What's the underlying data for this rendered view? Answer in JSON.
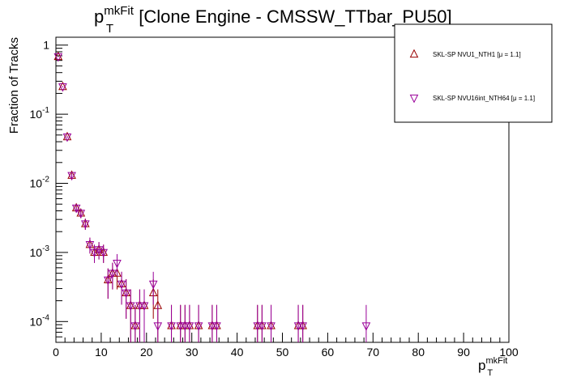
{
  "chart_data": {
    "type": "scatter",
    "title_main": "p",
    "title_sup": "mkFit",
    "title_sub": "T",
    "title_rest": " [Clone Engine - CMSSW_TTbar_PU50]",
    "xlabel_main": "p",
    "xlabel_sup": "mkFit",
    "xlabel_sub": "T",
    "ylabel": "Fraction of Tracks",
    "xlim": [
      0,
      100
    ],
    "ylim": [
      5e-05,
      1.3
    ],
    "y_scale": "log",
    "x_ticks": [
      "0",
      "10",
      "20",
      "30",
      "40",
      "50",
      "60",
      "70",
      "80",
      "90",
      "100"
    ],
    "y_ticks": [
      {
        "base": "10",
        "exp": "-4"
      },
      {
        "base": "10",
        "exp": "-3"
      },
      {
        "base": "10",
        "exp": "-2"
      },
      {
        "base": "10",
        "exp": "-1"
      },
      {
        "base": "1",
        "exp": ""
      }
    ],
    "grid": false,
    "legend_position": "top-right",
    "series": [
      {
        "name": "SKL-SP NVU1_NTH1 [μ =  1.1]",
        "marker": "triangle-up",
        "color": "#990000",
        "points": [
          [
            0.5,
            0.68
          ],
          [
            1.5,
            0.25
          ],
          [
            2.5,
            0.047
          ],
          [
            3.5,
            0.013
          ],
          [
            4.5,
            0.0044
          ],
          [
            5.5,
            0.0037
          ],
          [
            6.5,
            0.0026
          ],
          [
            7.5,
            0.0013
          ],
          [
            8.5,
            0.001
          ],
          [
            9.5,
            0.0011
          ],
          [
            10.5,
            0.001
          ],
          [
            11.5,
            0.0004
          ],
          [
            12.5,
            0.0005
          ],
          [
            13.5,
            0.0005
          ],
          [
            14.5,
            0.00035
          ],
          [
            15.5,
            0.00026
          ],
          [
            16.5,
            0.00017
          ],
          [
            17.5,
            8.7e-05
          ],
          [
            18.5,
            0.00017
          ],
          [
            19.5,
            0.00017
          ],
          [
            21.5,
            0.00026
          ],
          [
            22.5,
            0.00017
          ],
          [
            25.5,
            8.7e-05
          ],
          [
            27.5,
            8.7e-05
          ],
          [
            28.5,
            8.7e-05
          ],
          [
            29.5,
            8.7e-05
          ],
          [
            31.5,
            8.7e-05
          ],
          [
            34.5,
            8.7e-05
          ],
          [
            35.5,
            8.7e-05
          ],
          [
            44.5,
            8.7e-05
          ],
          [
            45.5,
            8.7e-05
          ],
          [
            47.5,
            8.7e-05
          ],
          [
            53.5,
            8.7e-05
          ],
          [
            54.5,
            8.7e-05
          ]
        ]
      },
      {
        "name": "SKL-SP NVU16int_NTH64 [μ =  1.1]",
        "marker": "triangle-down",
        "color": "#990099",
        "points": [
          [
            0.5,
            0.68
          ],
          [
            1.5,
            0.25
          ],
          [
            2.5,
            0.047
          ],
          [
            3.5,
            0.013
          ],
          [
            4.5,
            0.0044
          ],
          [
            5.5,
            0.0037
          ],
          [
            6.5,
            0.0026
          ],
          [
            7.5,
            0.0013
          ],
          [
            8.5,
            0.001
          ],
          [
            9.5,
            0.0011
          ],
          [
            10.5,
            0.001
          ],
          [
            11.5,
            0.0004
          ],
          [
            12.5,
            0.0005
          ],
          [
            13.5,
            0.0007
          ],
          [
            14.5,
            0.00035
          ],
          [
            15.5,
            0.00026
          ],
          [
            16.5,
            0.00017
          ],
          [
            17.5,
            8.7e-05
          ],
          [
            18.5,
            0.00017
          ],
          [
            19.5,
            0.00017
          ],
          [
            21.5,
            0.00035
          ],
          [
            22.5,
            8.7e-05
          ],
          [
            25.5,
            8.7e-05
          ],
          [
            27.5,
            8.7e-05
          ],
          [
            28.5,
            8.7e-05
          ],
          [
            29.5,
            8.7e-05
          ],
          [
            31.5,
            8.7e-05
          ],
          [
            34.5,
            8.7e-05
          ],
          [
            35.5,
            8.7e-05
          ],
          [
            44.5,
            8.7e-05
          ],
          [
            45.5,
            8.7e-05
          ],
          [
            47.5,
            8.7e-05
          ],
          [
            53.5,
            8.7e-05
          ],
          [
            54.5,
            8.7e-05
          ],
          [
            68.5,
            8.7e-05
          ]
        ]
      }
    ]
  }
}
